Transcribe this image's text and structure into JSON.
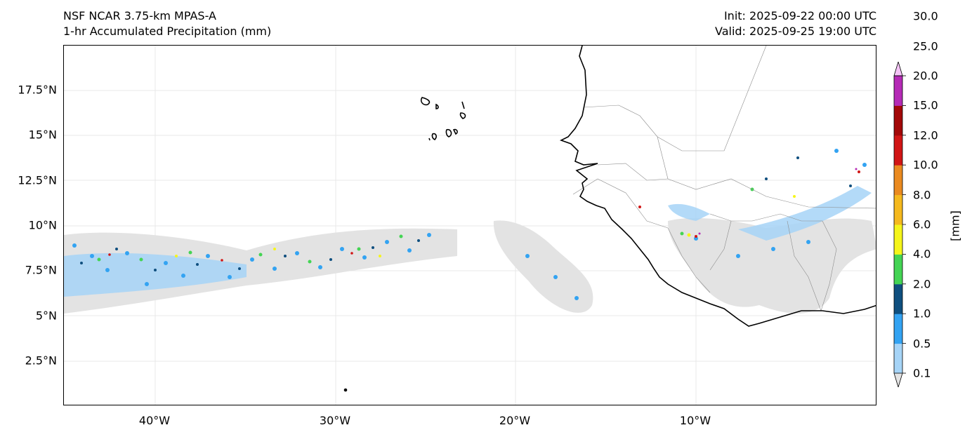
{
  "title": {
    "left_line1": "NSF NCAR 3.75-km MPAS-A",
    "left_line2": "1-hr Accumulated Precipitation (mm)",
    "right_line1": "Init: 2025-09-22 00:00 UTC",
    "right_line2": "Valid: 2025-09-25 19:00 UTC"
  },
  "axes": {
    "lat_labels": [
      "17.5°N",
      "15°N",
      "12.5°N",
      "10°N",
      "7.5°N",
      "5°N",
      "2.5°N"
    ],
    "lon_labels": [
      "40°W",
      "30°W",
      "20°W",
      "10°W"
    ]
  },
  "colorbar": {
    "unit_label": "[mm]",
    "levels": [
      "0.1",
      "0.5",
      "1.0",
      "2.0",
      "4.0",
      "6.0",
      "8.0",
      "10.0",
      "12.0",
      "15.0",
      "20.0",
      "25.0",
      "30.0"
    ],
    "colors": [
      "#e3e3e3",
      "#a6d4f7",
      "#33a3f2",
      "#0f4f7f",
      "#44d454",
      "#f5f51a",
      "#f5b91e",
      "#ea8a20",
      "#d11515",
      "#a30808",
      "#b52ab6",
      "#f5c4f7"
    ]
  }
}
